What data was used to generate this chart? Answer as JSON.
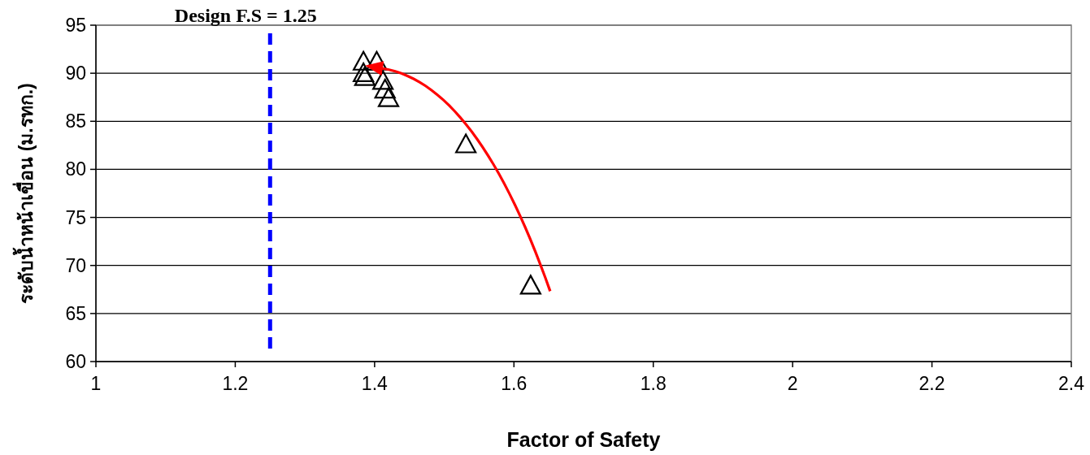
{
  "chart_data": {
    "type": "scatter",
    "xlabel": "Factor of Safety",
    "ylabel": "ระดับน้ำหน้าเขื่อน (ม.รทก.)",
    "series": [
      {
        "color": "#000000",
        "x": [
          1.384,
          1.403,
          1.384,
          1.386,
          1.412,
          1.415,
          1.42,
          1.531,
          1.624
        ],
        "values": [
          91.3,
          91.3,
          90.1,
          89.7,
          89.3,
          88.4,
          87.5,
          82.7,
          68.0
        ]
      }
    ],
    "xlim": [
      1,
      2.4
    ],
    "xticks": [
      1,
      1.2,
      1.4,
      1.6,
      1.8,
      2,
      2.2,
      2.4
    ],
    "ylim": [
      60,
      95
    ],
    "yticks": [
      60,
      65,
      70,
      75,
      80,
      85,
      90,
      95
    ],
    "grid": "y",
    "marker": "triangle",
    "ref_lines": [
      {
        "axis": "x",
        "value": 1.25,
        "label": "Design F.S = 1.25",
        "color": "#0000ff",
        "line_style": "dashed"
      }
    ]
  }
}
